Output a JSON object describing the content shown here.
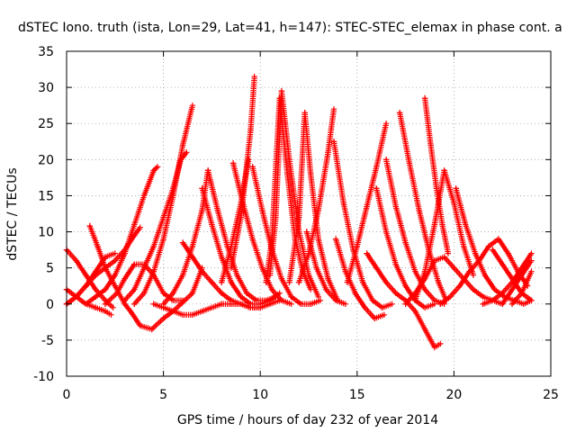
{
  "chart_data": {
    "type": "scatter",
    "title": "dSTEC Iono. truth (ista, Lon=29, Lat=41, h=147): STEC-STEC_elemax in phase cont. a",
    "xlabel": "GPS time / hours of day 232 of year 2014",
    "ylabel": "dSTEC  / TECUs",
    "xlim": [
      0,
      25
    ],
    "ylim": [
      -10,
      35
    ],
    "xticks": [
      0,
      5,
      10,
      15,
      20,
      25
    ],
    "yticks": [
      -10,
      -5,
      0,
      5,
      10,
      15,
      20,
      25,
      30,
      35
    ],
    "xtick_labels": [
      "0",
      "5",
      "10",
      "15",
      "20",
      "25"
    ],
    "ytick_labels": [
      "-10",
      "-5",
      "0",
      "5",
      "10",
      "15",
      "20",
      "25",
      "30",
      "35"
    ],
    "grid": true,
    "marker": "+",
    "color": "#ff0000",
    "series": [
      {
        "x": [
          0.0,
          0.5,
          1.0,
          1.5,
          2.0,
          2.4
        ],
        "y": [
          7.5,
          6.0,
          4.0,
          2.0,
          0.5,
          -0.5
        ]
      },
      {
        "x": [
          0.0,
          0.5,
          1.0,
          1.5,
          2.0,
          2.3
        ],
        "y": [
          2.0,
          1.0,
          0.0,
          -0.5,
          -1.0,
          -1.5
        ]
      },
      {
        "x": [
          1.2,
          1.6,
          2.0,
          2.5,
          3.0,
          3.3,
          3.8,
          4.4,
          5.0,
          5.5,
          5.9,
          6.5,
          7.0
        ],
        "y": [
          10.8,
          8.0,
          5.0,
          2.5,
          0.0,
          -1.0,
          -3.0,
          -3.5,
          -2.0,
          -1.0,
          0.0,
          1.5,
          5.0
        ]
      },
      {
        "x": [
          0.0,
          0.5,
          1.0,
          1.5,
          2.0,
          2.5
        ],
        "y": [
          0.0,
          1.0,
          2.5,
          4.5,
          6.5,
          7.0
        ]
      },
      {
        "x": [
          0.0,
          0.5,
          1.0,
          1.5,
          2.0,
          2.5,
          3.0,
          3.5,
          3.8
        ],
        "y": [
          0.0,
          1.0,
          2.5,
          4.0,
          5.0,
          6.0,
          7.5,
          9.5,
          10.6
        ]
      },
      {
        "x": [
          1.0,
          1.5,
          2.0,
          2.5,
          3.0,
          3.5,
          4.0,
          4.5,
          4.7
        ],
        "y": [
          0.0,
          1.0,
          2.0,
          4.0,
          7.0,
          11.0,
          15.0,
          18.5,
          19.0
        ]
      },
      {
        "x": [
          2.0,
          2.6,
          3.0,
          3.5,
          4.0,
          4.5,
          5.0,
          5.5,
          6.0
        ],
        "y": [
          0.0,
          1.5,
          3.5,
          5.5,
          5.5,
          4.0,
          1.5,
          0.5,
          0.5
        ]
      },
      {
        "x": [
          3.0,
          3.5,
          4.0,
          4.5,
          5.0,
          5.5,
          5.9,
          6.2
        ],
        "y": [
          0.5,
          2.0,
          5.0,
          8.0,
          12.0,
          16.0,
          20.0,
          21.0
        ]
      },
      {
        "x": [
          3.5,
          4.0,
          4.5,
          5.0,
          5.5,
          6.0,
          6.5
        ],
        "y": [
          0.0,
          1.5,
          4.5,
          9.0,
          15.0,
          22.0,
          27.5
        ]
      },
      {
        "x": [
          4.5,
          5.0,
          5.5,
          6.0,
          6.5,
          7.0,
          7.5,
          8.0,
          8.5,
          9.0,
          9.5,
          10.0,
          10.5,
          11.0
        ],
        "y": [
          0.0,
          -0.5,
          -1.0,
          -1.5,
          -1.5,
          -1.0,
          -0.5,
          0.0,
          0.0,
          0.0,
          -0.5,
          -0.5,
          0.0,
          0.5
        ]
      },
      {
        "x": [
          5.0,
          5.5,
          6.0,
          6.5,
          7.0,
          7.3
        ],
        "y": [
          0.0,
          1.5,
          4.0,
          8.0,
          13.0,
          18.5
        ]
      },
      {
        "x": [
          6.0,
          6.5,
          7.0,
          7.5,
          8.0,
          8.5,
          9.0,
          9.5,
          10.0
        ],
        "y": [
          8.5,
          6.5,
          4.5,
          3.0,
          1.5,
          0.5,
          0.0,
          -0.5,
          -0.5
        ]
      },
      {
        "x": [
          7.0,
          7.5,
          8.0,
          8.5,
          9.0,
          9.5,
          10.0,
          10.5,
          11.0
        ],
        "y": [
          16.0,
          11.0,
          6.5,
          3.0,
          1.0,
          0.0,
          0.0,
          0.5,
          1.5
        ]
      },
      {
        "x": [
          7.3,
          7.8,
          8.3,
          8.8,
          9.3,
          9.8,
          10.3,
          10.8
        ],
        "y": [
          18.5,
          13.0,
          8.0,
          4.0,
          1.5,
          0.5,
          0.5,
          1.0
        ]
      },
      {
        "x": [
          8.5,
          9.0,
          9.5,
          9.7
        ],
        "y": [
          5.0,
          12.0,
          24.0,
          31.5
        ]
      },
      {
        "x": [
          8.0,
          8.5,
          9.0,
          9.4
        ],
        "y": [
          3.0,
          8.0,
          14.0,
          20.0
        ]
      },
      {
        "x": [
          8.6,
          9.1,
          9.6,
          10.1,
          10.6,
          11.1,
          11.6
        ],
        "y": [
          19.5,
          14.0,
          9.0,
          5.0,
          2.0,
          0.5,
          0.0
        ]
      },
      {
        "x": [
          9.6,
          10.1,
          10.6,
          11.1,
          11.6,
          12.1,
          12.6,
          13.1
        ],
        "y": [
          19.0,
          13.0,
          7.5,
          3.5,
          1.0,
          0.0,
          0.0,
          0.5
        ]
      },
      {
        "x": [
          10.5,
          10.8,
          11.1,
          11.5,
          12.0,
          12.5,
          13.0
        ],
        "y": [
          4.0,
          12.0,
          29.5,
          20.0,
          10.0,
          4.0,
          1.0
        ]
      },
      {
        "x": [
          10.3,
          10.6,
          11.0,
          11.4,
          11.8,
          12.2,
          12.6
        ],
        "y": [
          3.0,
          9.0,
          28.5,
          18.0,
          9.0,
          4.5,
          2.0
        ]
      },
      {
        "x": [
          11.5,
          12.0,
          12.3,
          12.6,
          13.0,
          13.5,
          14.0
        ],
        "y": [
          3.0,
          12.0,
          26.5,
          18.0,
          9.0,
          3.5,
          0.5
        ]
      },
      {
        "x": [
          12.0,
          12.5,
          13.0,
          13.5,
          13.8
        ],
        "y": [
          3.0,
          7.0,
          13.0,
          21.0,
          27.0
        ]
      },
      {
        "x": [
          12.4,
          12.9,
          13.4,
          13.9,
          14.4
        ],
        "y": [
          10.0,
          5.0,
          2.0,
          0.5,
          0.0
        ]
      },
      {
        "x": [
          13.8,
          14.3,
          14.8,
          15.3,
          15.8,
          16.3,
          16.8
        ],
        "y": [
          22.5,
          14.0,
          7.5,
          3.0,
          0.5,
          -0.5,
          0.0
        ]
      },
      {
        "x": [
          13.9,
          14.4,
          14.9,
          15.4,
          15.9,
          16.4
        ],
        "y": [
          9.0,
          4.5,
          1.5,
          -0.5,
          -2.0,
          -1.5
        ]
      },
      {
        "x": [
          14.5,
          15.0,
          15.5,
          16.0,
          16.5
        ],
        "y": [
          3.0,
          8.0,
          13.5,
          19.0,
          25.0
        ]
      },
      {
        "x": [
          16.0,
          16.5,
          17.0,
          17.5,
          18.0,
          18.5,
          19.0
        ],
        "y": [
          16.0,
          10.0,
          5.5,
          2.5,
          0.5,
          -0.5,
          0.0
        ]
      },
      {
        "x": [
          16.5,
          17.0,
          17.5,
          18.0,
          18.5,
          19.0,
          19.5
        ],
        "y": [
          20.0,
          13.5,
          8.5,
          4.5,
          2.0,
          0.5,
          0.0
        ]
      },
      {
        "x": [
          17.2,
          17.7,
          18.2,
          18.7,
          19.2,
          19.6
        ],
        "y": [
          26.5,
          19.5,
          13.0,
          7.5,
          3.0,
          0.5
        ]
      },
      {
        "x": [
          15.5,
          16.0,
          16.5,
          17.0,
          17.5,
          18.0,
          18.5,
          19.0,
          19.3
        ],
        "y": [
          7.0,
          5.0,
          3.0,
          1.5,
          0.5,
          -1.0,
          -3.5,
          -6.0,
          -5.5
        ]
      },
      {
        "x": [
          18.5,
          18.8,
          19.1,
          19.4,
          19.7
        ],
        "y": [
          28.5,
          22.0,
          16.0,
          11.0,
          7.0
        ]
      },
      {
        "x": [
          17.5,
          18.0,
          18.5,
          19.0,
          19.5,
          20.0,
          20.5,
          21.0,
          21.5,
          22.0,
          22.5
        ],
        "y": [
          0.0,
          1.5,
          3.5,
          6.0,
          6.5,
          5.0,
          3.5,
          2.0,
          1.0,
          0.5,
          0.0
        ]
      },
      {
        "x": [
          18.0,
          18.5,
          19.0,
          19.5,
          20.0,
          20.5,
          21.0
        ],
        "y": [
          0.5,
          4.5,
          11.0,
          18.5,
          14.0,
          8.0,
          4.0
        ]
      },
      {
        "x": [
          19.3,
          19.8,
          20.3,
          20.8,
          21.3,
          21.8,
          22.3,
          22.8,
          23.3,
          23.8
        ],
        "y": [
          0.0,
          1.0,
          2.5,
          4.5,
          6.0,
          8.0,
          9.0,
          7.0,
          4.5,
          2.5
        ]
      },
      {
        "x": [
          20.1,
          20.6,
          21.1,
          21.6,
          22.1,
          22.6,
          23.1,
          23.6,
          24.0
        ],
        "y": [
          16.0,
          11.0,
          7.0,
          4.0,
          2.0,
          1.0,
          0.5,
          0.0,
          0.5
        ]
      },
      {
        "x": [
          21.5,
          22.0,
          22.5,
          23.0,
          23.5,
          24.0
        ],
        "y": [
          0.0,
          0.5,
          1.5,
          3.0,
          5.0,
          7.0
        ]
      },
      {
        "x": [
          22.0,
          22.5,
          23.0,
          23.5,
          24.0
        ],
        "y": [
          7.5,
          5.5,
          3.5,
          1.5,
          0.5
        ]
      },
      {
        "x": [
          22.5,
          23.0,
          23.5,
          24.0
        ],
        "y": [
          0.0,
          2.0,
          4.0,
          6.0
        ]
      },
      {
        "x": [
          23.0,
          23.5,
          24.0
        ],
        "y": [
          0.0,
          1.5,
          4.5
        ]
      }
    ]
  }
}
